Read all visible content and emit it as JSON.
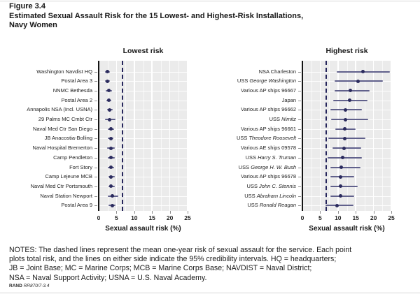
{
  "figure": {
    "label": "Figure 3.4",
    "title_line1": "Estimated Sexual Assault Risk for the 15 Lowest- and Highest-Risk Installations,",
    "title_line2": "Navy Women"
  },
  "notes_lines": [
    "NOTES: The dashed lines represent the mean one-year risk of sexual assault for the service. Each point",
    "plots total risk, and the lines on either side indicate the 95% credibility intervals. HQ = headquarters;",
    "JB = Joint Base; MC = Marine Corps; MCB = Marine Corps Base; NAVDIST = Naval District;",
    "NSA = Naval Support Activity; USNA = U.S. Naval Academy."
  ],
  "source": {
    "brand": "RAND",
    "doc": "RR870/7-3.4"
  },
  "colors": {
    "point": "#2b2b5e",
    "ci": "#61618c",
    "mean_dash": "#26265c",
    "plot_bg": "#ebebeb",
    "grid": "#ffffff",
    "axis_line": "#141414",
    "tick": "#8f8f8f"
  },
  "chart_data": [
    {
      "type": "scatter",
      "title": "Lowest risk",
      "xlabel": "Sexual assault risk (%)",
      "xlim": [
        0,
        25
      ],
      "xticks": [
        0,
        5,
        10,
        15,
        20,
        25
      ],
      "mean_line": 6.6,
      "grid": true,
      "points": [
        {
          "label": "Washington Navdist HQ",
          "value": 2.4,
          "lo": 1.8,
          "hi": 3.1
        },
        {
          "label": "Postal Area 3",
          "value": 2.4,
          "lo": 1.8,
          "hi": 3.1
        },
        {
          "label": "NNMC Bethesda",
          "value": 2.8,
          "lo": 2.0,
          "hi": 3.7
        },
        {
          "label": "Postal Area 2",
          "value": 2.8,
          "lo": 2.2,
          "hi": 3.5
        },
        {
          "label": "Annapolis NSA (Incl. USNA)",
          "value": 3.1,
          "lo": 2.3,
          "hi": 4.0
        },
        {
          "label": "29 Palms MC Cmbt Ctr",
          "value": 3.0,
          "lo": 1.8,
          "hi": 4.7
        },
        {
          "label": "Naval Med Ctr San Diego",
          "value": 3.4,
          "lo": 2.5,
          "hi": 4.3
        },
        {
          "label": "JB Anacostia-Bolling",
          "value": 3.4,
          "lo": 2.6,
          "hi": 4.2
        },
        {
          "label": "Naval Hospital Bremerton",
          "value": 3.4,
          "lo": 2.4,
          "hi": 4.5
        },
        {
          "label": "Camp Pendleton",
          "value": 3.5,
          "lo": 2.6,
          "hi": 4.6
        },
        {
          "label": "Fort Story",
          "value": 3.4,
          "lo": 2.6,
          "hi": 4.4
        },
        {
          "label": "Camp Lejeune MCB",
          "value": 3.5,
          "lo": 2.7,
          "hi": 4.5
        },
        {
          "label": "Naval Med Ctr Portsmouth",
          "value": 3.5,
          "lo": 2.7,
          "hi": 4.6
        },
        {
          "label": "Naval Station Newport",
          "value": 3.8,
          "lo": 2.6,
          "hi": 5.6
        },
        {
          "label": "Postal Area 9",
          "value": 3.8,
          "lo": 2.7,
          "hi": 4.8
        }
      ]
    },
    {
      "type": "scatter",
      "title": "Highest risk",
      "xlabel": "Sexual assault risk (%)",
      "xlim": [
        0,
        25
      ],
      "xticks": [
        0,
        5,
        10,
        15,
        20,
        25
      ],
      "mean_line": 6.6,
      "grid": true,
      "points": [
        {
          "label": "NSA Charleston",
          "value": 17.0,
          "lo": 9.7,
          "hi": 24.7
        },
        {
          "label": "USS George Washington",
          "italic": "George Washington",
          "value": 15.6,
          "lo": 9.1,
          "hi": 22.7
        },
        {
          "label": "Various AP ships 96667",
          "value": 13.5,
          "lo": 9.0,
          "hi": 18.8
        },
        {
          "label": "Japan",
          "value": 13.3,
          "lo": 8.7,
          "hi": 18.3
        },
        {
          "label": "Various AP ships 96662",
          "value": 12.2,
          "lo": 7.8,
          "hi": 16.8
        },
        {
          "label": "USS Nimitz",
          "italic": "Nimitz",
          "value": 12.2,
          "lo": 8.1,
          "hi": 18.6
        },
        {
          "label": "Various AP ships 96661",
          "value": 11.9,
          "lo": 9.3,
          "hi": 15.0
        },
        {
          "label": "USS Theodore Roosevelt",
          "italic": "Theodore Roosevelt",
          "value": 11.9,
          "lo": 7.3,
          "hi": 17.7
        },
        {
          "label": "Various AE ships 09578",
          "value": 11.8,
          "lo": 8.5,
          "hi": 16.6
        },
        {
          "label": "USS Harry S. Truman",
          "italic": "Harry S. Truman",
          "value": 11.4,
          "lo": 7.0,
          "hi": 16.8
        },
        {
          "label": "USS George H. W. Bush",
          "italic": "George H. W. Bush",
          "value": 10.9,
          "lo": 7.8,
          "hi": 16.3
        },
        {
          "label": "Various AP ships 96678",
          "value": 10.8,
          "lo": 7.9,
          "hi": 14.6
        },
        {
          "label": "USS John C. Stennis",
          "italic": "John C. Stennis",
          "value": 10.8,
          "lo": 7.8,
          "hi": 15.5
        },
        {
          "label": "USS Abraham Lincoln",
          "italic": "Abraham Lincoln",
          "value": 10.7,
          "lo": 7.8,
          "hi": 14.6
        },
        {
          "label": "USS Ronald Reagan",
          "italic": "Ronald Reagan",
          "value": 9.8,
          "lo": 6.5,
          "hi": 14.4
        }
      ]
    }
  ]
}
